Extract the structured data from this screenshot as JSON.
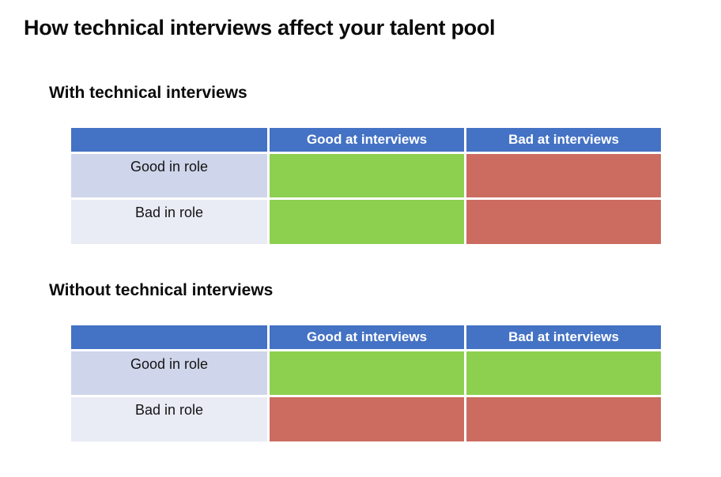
{
  "page": {
    "title": "How technical interviews affect your talent pool"
  },
  "colors": {
    "header_blue": "#4472C4",
    "header_text": "#FFFFFF",
    "good_green": "#8DD04F",
    "bad_red": "#CC6C60",
    "label_band_odd": "#CFD5EA",
    "label_band_even": "#E9EBF5"
  },
  "sections": [
    {
      "heading": "With technical interviews",
      "table": {
        "column_headers": [
          "Good at interviews",
          "Bad at interviews"
        ],
        "rows": [
          {
            "label": "Good in role",
            "cells": [
              "#8DD04F",
              "#CC6C60"
            ]
          },
          {
            "label": "Bad in role",
            "cells": [
              "#8DD04F",
              "#CC6C60"
            ]
          }
        ]
      }
    },
    {
      "heading": "Without technical interviews",
      "table": {
        "column_headers": [
          "Good at interviews",
          "Bad at interviews"
        ],
        "rows": [
          {
            "label": "Good in role",
            "cells": [
              "#8DD04F",
              "#8DD04F"
            ]
          },
          {
            "label": "Bad in role",
            "cells": [
              "#CC6C60",
              "#CC6C60"
            ]
          }
        ]
      }
    }
  ]
}
